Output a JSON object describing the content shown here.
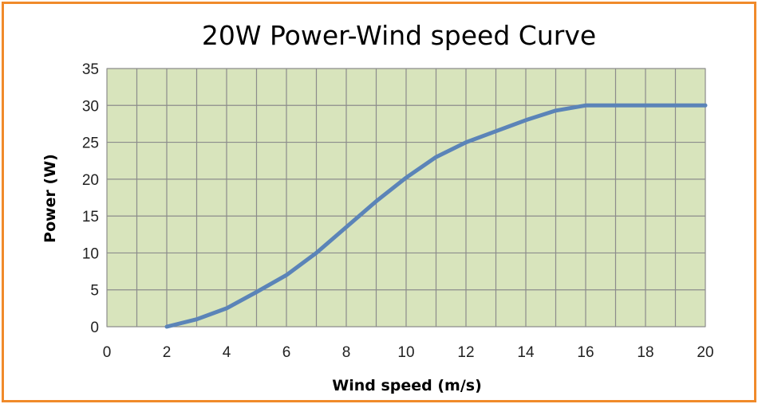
{
  "chart_data": {
    "type": "line",
    "title": "20W Power-Wind speed Curve",
    "xlabel": "Wind speed (m/s)",
    "ylabel": "Power (W)",
    "xlim": [
      0,
      20
    ],
    "ylim": [
      0,
      35
    ],
    "x_ticks": [
      0,
      2,
      4,
      6,
      8,
      10,
      12,
      14,
      16,
      18,
      20
    ],
    "y_ticks": [
      0,
      5,
      10,
      15,
      20,
      25,
      30,
      35
    ],
    "grid": true,
    "legend": "none",
    "series": [
      {
        "x": [
          2,
          3,
          4,
          5,
          6,
          7,
          8,
          9,
          10,
          11,
          12,
          13,
          14,
          15,
          16,
          17,
          18,
          19,
          20
        ],
        "values": [
          0,
          1,
          2.5,
          4.7,
          7,
          10,
          13.5,
          17,
          20.2,
          23,
          25,
          26.5,
          28,
          29.3,
          30,
          30,
          30,
          30,
          30
        ]
      }
    ],
    "colors": {
      "plot_background": "#d8e4bc",
      "grid": "#8c8c8c",
      "line": "#5b84b8",
      "border": "#f08a2a"
    }
  }
}
